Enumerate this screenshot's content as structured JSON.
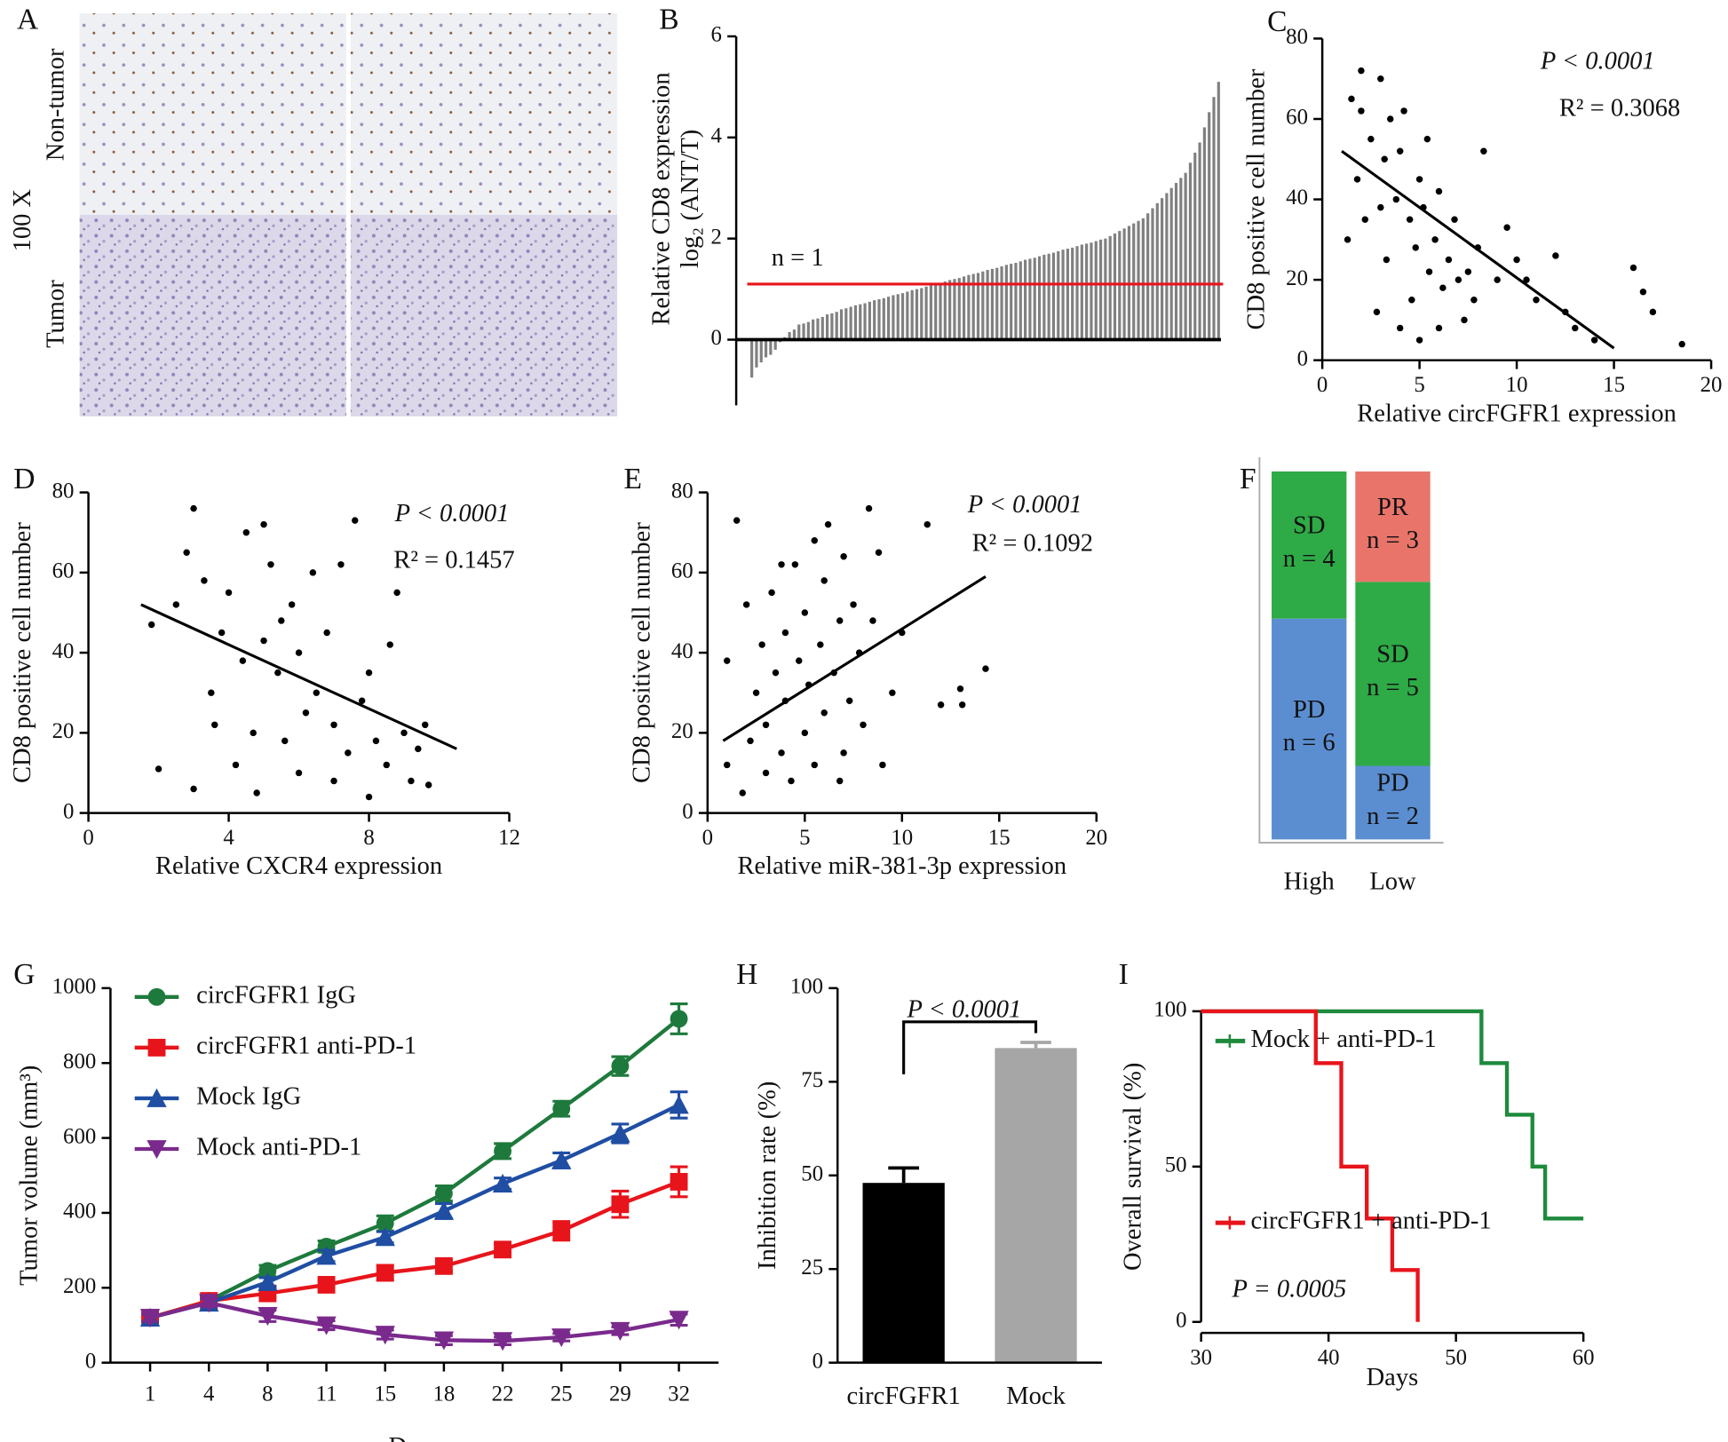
{
  "chart_data": [
    {
      "type": "image",
      "panel_label": "A",
      "magnification": "100 X",
      "row_labels": [
        "Non-tumor",
        "Tumor"
      ]
    },
    {
      "type": "bar",
      "panel_label": "B",
      "ylabel": [
        "Relative CD8 expression",
        "log₂ (ANT/T)"
      ],
      "color": "#808080",
      "values": [
        -0.75,
        -0.55,
        -0.45,
        -0.35,
        -0.3,
        -0.2,
        -0.05,
        0.05,
        0.15,
        0.2,
        0.3,
        0.32,
        0.35,
        0.4,
        0.42,
        0.45,
        0.5,
        0.52,
        0.55,
        0.6,
        0.62,
        0.65,
        0.68,
        0.7,
        0.72,
        0.75,
        0.78,
        0.8,
        0.82,
        0.85,
        0.88,
        0.9,
        0.92,
        0.95,
        0.98,
        1.0,
        1.02,
        1.05,
        1.08,
        1.1,
        1.12,
        1.15,
        1.18,
        1.2,
        1.22,
        1.25,
        1.28,
        1.3,
        1.32,
        1.35,
        1.38,
        1.4,
        1.42,
        1.45,
        1.48,
        1.5,
        1.52,
        1.55,
        1.58,
        1.6,
        1.62,
        1.65,
        1.68,
        1.7,
        1.72,
        1.75,
        1.78,
        1.8,
        1.82,
        1.85,
        1.88,
        1.9,
        1.92,
        1.95,
        1.98,
        2.0,
        2.05,
        2.1,
        2.15,
        2.2,
        2.25,
        2.3,
        2.35,
        2.4,
        2.5,
        2.6,
        2.7,
        2.8,
        2.9,
        3.0,
        3.1,
        3.2,
        3.3,
        3.5,
        3.7,
        3.9,
        4.2,
        4.5,
        4.8,
        5.1
      ],
      "ylim": [
        -1.3,
        6
      ],
      "yticks": [
        0,
        2,
        4,
        6
      ],
      "reference_line": {
        "value": 1.1,
        "label": "n = 1",
        "color": "#e8141b"
      }
    },
    {
      "type": "scatter",
      "panel_label": "C",
      "xlabel": "Relative circFGFR1 expression",
      "ylabel": "CD8 positive cell number",
      "color": "#000000",
      "x": [
        1.5,
        2,
        1.8,
        2.5,
        3,
        3.2,
        2.2,
        1.3,
        3.5,
        4,
        3.8,
        4.2,
        4.5,
        2.8,
        3.3,
        5,
        5.2,
        4.8,
        5.5,
        5.8,
        6,
        6.2,
        6.5,
        4,
        4.6,
        5.4,
        6.8,
        7,
        7.3,
        7.8,
        8,
        8.3,
        5,
        6,
        7.5,
        9,
        9.5,
        10,
        10.5,
        11,
        12,
        12.5,
        13,
        14,
        16,
        16.5,
        17,
        18.5,
        3,
        2
      ],
      "y": [
        65,
        72,
        45,
        55,
        70,
        50,
        35,
        30,
        60,
        52,
        40,
        62,
        35,
        12,
        25,
        45,
        38,
        28,
        22,
        30,
        42,
        18,
        25,
        8,
        15,
        55,
        35,
        20,
        10,
        15,
        28,
        52,
        5,
        8,
        22,
        20,
        33,
        25,
        20,
        15,
        26,
        12,
        8,
        5,
        23,
        17,
        12,
        4,
        38,
        62
      ],
      "fit_line": {
        "x": [
          1,
          15
        ],
        "y": [
          52,
          3
        ]
      },
      "annotations": [
        "P < 0.0001",
        "R² = 0.3068"
      ],
      "xlim": [
        0,
        20
      ],
      "xticks": [
        0,
        5,
        10,
        15,
        20
      ],
      "ylim": [
        0,
        80
      ],
      "yticks": [
        0,
        20,
        40,
        60,
        80
      ]
    },
    {
      "type": "scatter",
      "panel_label": "D",
      "xlabel": "Relative CXCR4 expression",
      "ylabel": "CD8 positive cell number",
      "color": "#000000",
      "x": [
        1.8,
        2,
        2.5,
        2.8,
        3,
        3,
        3.3,
        3.5,
        3.8,
        4,
        4.2,
        4.4,
        4.5,
        4.7,
        4.8,
        5,
        5,
        5.2,
        5.4,
        5.6,
        5.8,
        6,
        6,
        6.2,
        6.4,
        6.5,
        6.8,
        7,
        7,
        7.2,
        7.4,
        7.6,
        7.8,
        8,
        8,
        8.2,
        8.5,
        8.6,
        8.8,
        9,
        9.2,
        9.4,
        9.6,
        9.7,
        5.5,
        3.6
      ],
      "y": [
        47,
        11,
        52,
        65,
        76,
        6,
        58,
        30,
        45,
        55,
        12,
        38,
        70,
        20,
        5,
        43,
        72,
        62,
        35,
        18,
        52,
        40,
        10,
        25,
        60,
        30,
        45,
        22,
        8,
        62,
        15,
        73,
        28,
        35,
        4,
        18,
        12,
        42,
        55,
        20,
        8,
        16,
        22,
        7,
        48,
        22
      ],
      "fit_line": {
        "x": [
          1.5,
          10.5
        ],
        "y": [
          52,
          16
        ]
      },
      "annotations": [
        "P < 0.0001",
        "R² = 0.1457"
      ],
      "xlim": [
        0,
        12
      ],
      "xticks": [
        0,
        4,
        8,
        12
      ],
      "ylim": [
        0,
        80
      ],
      "yticks": [
        0,
        20,
        40,
        60,
        80
      ]
    },
    {
      "type": "scatter",
      "panel_label": "E",
      "xlabel": "Relative miR-381-3p expression",
      "ylabel": "CD8 positive cell number",
      "color": "#000000",
      "x": [
        1,
        1,
        1.5,
        1.8,
        2,
        2.2,
        2.5,
        2.8,
        3,
        3,
        3.3,
        3.5,
        3.8,
        4,
        4,
        4.3,
        4.5,
        4.7,
        5,
        5,
        5.2,
        5.5,
        5.5,
        5.8,
        6,
        6,
        6.2,
        6.5,
        6.8,
        7,
        7,
        7.3,
        7.5,
        7.8,
        8,
        8.3,
        8.5,
        8.8,
        9,
        9.5,
        10,
        11.3,
        12,
        13,
        13.1,
        14.3,
        3.8,
        6.8
      ],
      "y": [
        38,
        12,
        73,
        5,
        52,
        18,
        30,
        42,
        10,
        22,
        55,
        35,
        15,
        45,
        28,
        8,
        62,
        38,
        20,
        50,
        32,
        68,
        12,
        42,
        25,
        58,
        72,
        35,
        48,
        15,
        64,
        28,
        52,
        40,
        22,
        76,
        48,
        65,
        12,
        30,
        45,
        72,
        27,
        31,
        27,
        36,
        62,
        8
      ],
      "fit_line": {
        "x": [
          0.8,
          14.3
        ],
        "y": [
          18,
          59
        ]
      },
      "annotations": [
        "P < 0.0001",
        "R² = 0.1092"
      ],
      "xlim": [
        0,
        20
      ],
      "xticks": [
        0,
        5,
        10,
        15,
        20
      ],
      "ylim": [
        0,
        80
      ],
      "yticks": [
        0,
        20,
        40,
        60,
        80
      ]
    },
    {
      "type": "stacked_bar",
      "panel_label": "F",
      "categories": [
        "High",
        "Low"
      ],
      "ylim": [
        0,
        10
      ],
      "series": [
        {
          "name": "PD",
          "color": "#5b8ed0",
          "values": [
            6,
            2
          ],
          "value_labels": [
            "n = 6",
            "n = 2"
          ]
        },
        {
          "name": "SD",
          "color": "#2eaa47",
          "values": [
            4,
            5
          ],
          "value_labels": [
            "n = 4",
            "n = 5"
          ]
        },
        {
          "name": "PR",
          "color": "#e8746a",
          "values": [
            null,
            3
          ],
          "value_labels": [
            null,
            "n = 3"
          ]
        }
      ]
    },
    {
      "type": "line",
      "panel_label": "G",
      "xlabel": "Days",
      "ylabel": "Tumor volume (mm³)",
      "categories": [
        "1",
        "4",
        "8",
        "11",
        "15",
        "18",
        "22",
        "25",
        "29",
        "32"
      ],
      "legend": "upper left",
      "ylim": [
        0,
        1000
      ],
      "yticks": [
        0,
        200,
        400,
        600,
        800,
        1000
      ],
      "series": [
        {
          "name": "circFGFR1 IgG",
          "color": "#1e7a3c",
          "marker": "circle",
          "values": [
            120,
            165,
            245,
            310,
            372,
            452,
            565,
            678,
            792,
            918
          ],
          "errors": [
            10,
            10,
            15,
            15,
            20,
            20,
            20,
            20,
            25,
            40
          ]
        },
        {
          "name": "circFGFR1 anti-PD-1",
          "color": "#e8141b",
          "marker": "square",
          "values": [
            120,
            165,
            185,
            208,
            240,
            258,
            302,
            352,
            423,
            483
          ],
          "errors": [
            10,
            10,
            12,
            12,
            20,
            15,
            15,
            25,
            35,
            40
          ]
        },
        {
          "name": "Mock IgG",
          "color": "#1f4ea3",
          "marker": "triangle",
          "values": [
            120,
            160,
            215,
            285,
            335,
            405,
            478,
            540,
            612,
            688
          ],
          "errors": [
            10,
            10,
            12,
            15,
            15,
            20,
            15,
            20,
            25,
            35
          ]
        },
        {
          "name": "Mock anti-PD-1",
          "color": "#7a2a8c",
          "marker": "triangle-down",
          "values": [
            120,
            160,
            125,
            100,
            75,
            60,
            58,
            68,
            85,
            115
          ],
          "errors": [
            10,
            10,
            15,
            12,
            12,
            12,
            10,
            10,
            10,
            15
          ]
        }
      ]
    },
    {
      "type": "bar",
      "panel_label": "H",
      "ylabel": "Inhibition rate (%)",
      "categories": [
        "circFGFR1",
        "Mock"
      ],
      "values": [
        48,
        84
      ],
      "errors": [
        4,
        1.5
      ],
      "colors": [
        "#000000",
        "#a6a6a6"
      ],
      "ylim": [
        0,
        100
      ],
      "yticks": [
        0,
        25,
        50,
        75,
        100
      ],
      "annotations": [
        "P < 0.0001"
      ]
    },
    {
      "type": "step",
      "panel_label": "I",
      "xlabel": "Days",
      "ylabel": "Overall survival (%)",
      "xlim": [
        30,
        60
      ],
      "xticks": [
        30,
        40,
        50,
        60
      ],
      "ylim": [
        0,
        100
      ],
      "yticks": [
        0,
        50,
        100
      ],
      "annotations": [
        "P = 0.0005"
      ],
      "series": [
        {
          "name": "Mock + anti-PD-1",
          "color": "#1e8a3c",
          "x": [
            30,
            52,
            54,
            56,
            57,
            60
          ],
          "values": [
            100,
            83.3,
            66.7,
            50,
            33.3,
            33.3
          ]
        },
        {
          "name": "circFGFR1 + anti-PD-1",
          "color": "#e8141b",
          "x": [
            30,
            39,
            41,
            43,
            45,
            47
          ],
          "values": [
            100,
            83.3,
            50,
            33.3,
            16.7,
            0
          ]
        }
      ]
    }
  ]
}
